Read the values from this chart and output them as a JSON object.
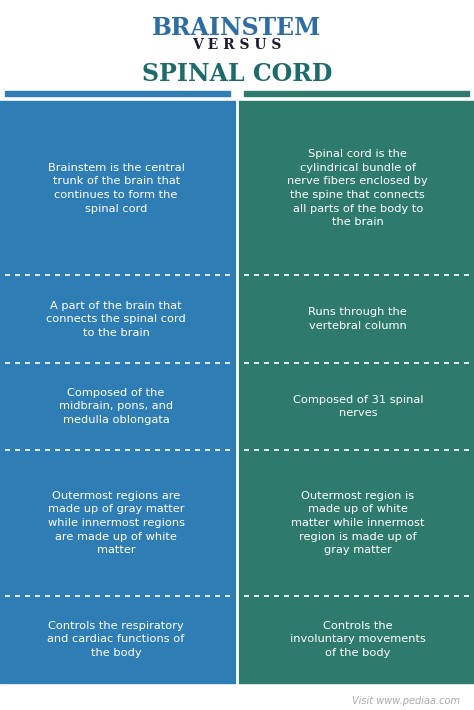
{
  "title1": "BRAINSTEM",
  "versus": "V E R S U S",
  "title2": "SPINAL CORD",
  "title1_color": "#2E6DA4",
  "versus_color": "#1a1a2e",
  "title2_color": "#1e6b6b",
  "left_bg": "#2E7DB5",
  "right_bg": "#2E7B6E",
  "text_color": "#ffffff",
  "watermark": "Visit www.pediaa.com",
  "rows": [
    {
      "left": "Brainstem is the central\ntrunk of the brain that\ncontinues to form the\nspinal cord",
      "right": "Spinal cord is the\ncylindrical bundle of\nnerve fibers enclosed by\nthe spine that connects\nall parts of the body to\nthe brain"
    },
    {
      "left": "A part of the brain that\nconnects the spinal cord\nto the brain",
      "right": "Runs through the\nvertebral column"
    },
    {
      "left": "Composed of the\nmidbrain, pons, and\nmedulla oblongata",
      "right": "Composed of 31 spinal\nnerves"
    },
    {
      "left": "Outermost regions are\nmade up of gray matter\nwhile innermost regions\nare made up of white\nmatter",
      "right": "Outermost region is\nmade up of white\nmatter while innermost\nregion is made up of\ngray matter"
    },
    {
      "left": "Controls the respiratory\nand cardiac functions of\nthe body",
      "right": "Controls the\ninvoluntary movements\nof the body"
    }
  ],
  "row_proportions": [
    6,
    3,
    3,
    5,
    3
  ]
}
